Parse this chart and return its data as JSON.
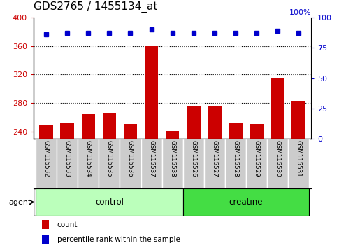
{
  "title": "GDS2765 / 1455134_at",
  "samples": [
    "GSM115532",
    "GSM115533",
    "GSM115534",
    "GSM115535",
    "GSM115536",
    "GSM115537",
    "GSM115538",
    "GSM115526",
    "GSM115527",
    "GSM115528",
    "GSM115529",
    "GSM115530",
    "GSM115531"
  ],
  "counts": [
    249,
    253,
    265,
    266,
    251,
    361,
    241,
    276,
    276,
    252,
    251,
    315,
    283
  ],
  "percentiles": [
    86,
    87,
    87,
    87,
    87,
    90,
    87,
    87,
    87,
    87,
    87,
    89,
    87
  ],
  "groups": [
    {
      "label": "control",
      "indices": [
        0,
        1,
        2,
        3,
        4,
        5,
        6
      ],
      "color": "#bbffbb"
    },
    {
      "label": "creatine",
      "indices": [
        7,
        8,
        9,
        10,
        11,
        12
      ],
      "color": "#44dd44"
    }
  ],
  "bar_color": "#cc0000",
  "dot_color": "#0000cc",
  "ylim_left": [
    230,
    400
  ],
  "ylim_right": [
    0,
    100
  ],
  "yticks_left": [
    240,
    280,
    320,
    360,
    400
  ],
  "yticks_right": [
    0,
    25,
    50,
    75,
    100
  ],
  "left_tick_color": "#cc0000",
  "right_tick_color": "#0000cc",
  "agent_label": "agent",
  "legend_count": "count",
  "legend_percentile": "percentile rank within the sample",
  "background_plot": "#ffffff",
  "background_xtick": "#cccccc",
  "tick_fontsize": 8,
  "title_fontsize": 11
}
